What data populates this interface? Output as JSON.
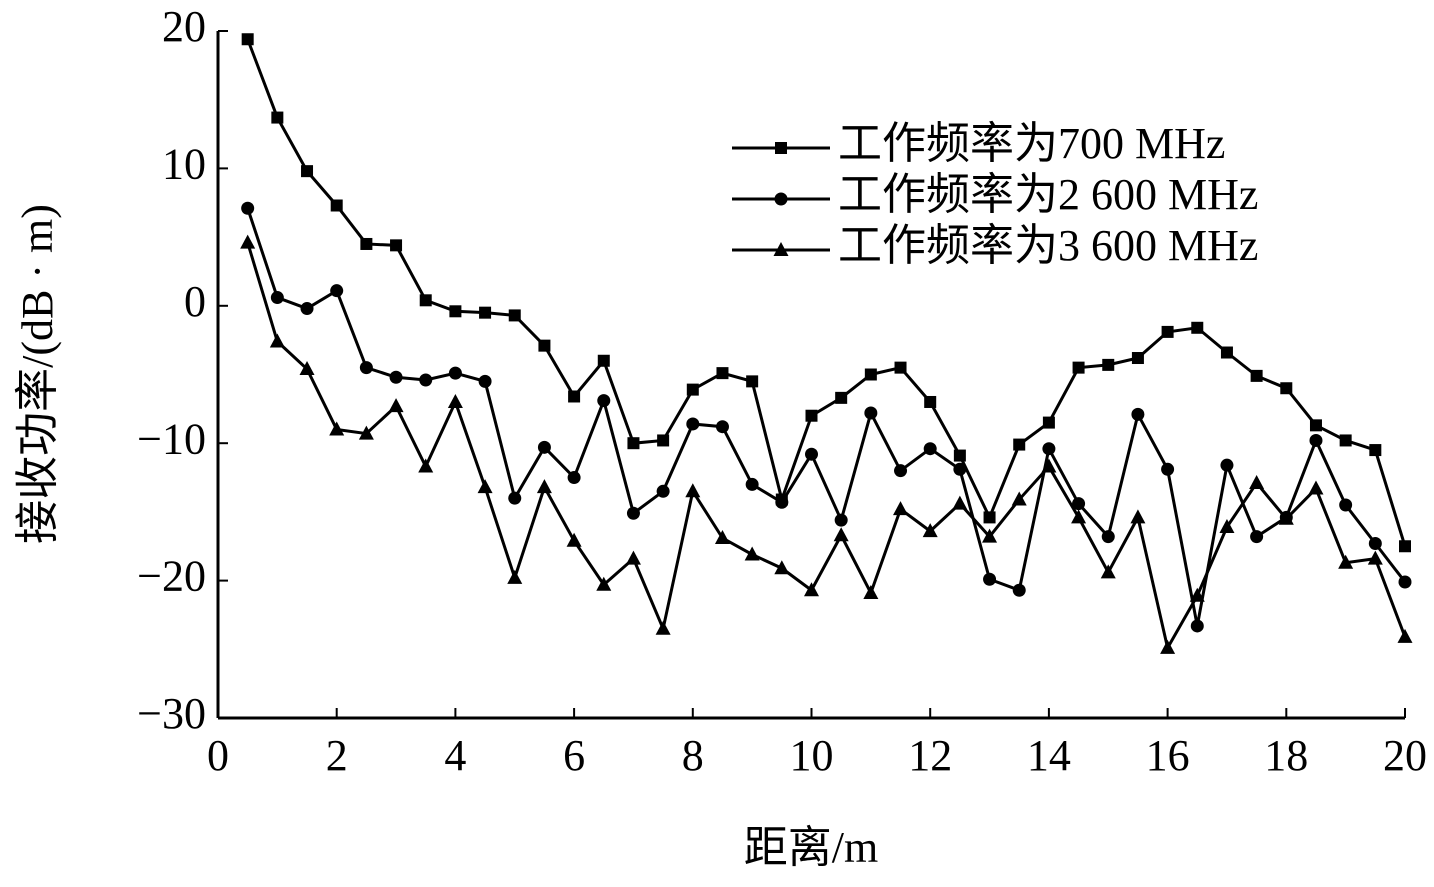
{
  "chart_data": {
    "type": "line",
    "xlabel": "距离/m",
    "ylabel": "接收功率/(dB · m)",
    "x": [
      0.5,
      1,
      1.5,
      2,
      2.5,
      3,
      3.5,
      4,
      4.5,
      5,
      5.5,
      6,
      6.5,
      7,
      7.5,
      8,
      8.5,
      9,
      9.5,
      10,
      10.5,
      11,
      11.5,
      12,
      12.5,
      13,
      13.5,
      14,
      14.5,
      15,
      15.5,
      16,
      16.5,
      17,
      17.5,
      18,
      18.5,
      19,
      19.5,
      20
    ],
    "series": [
      {
        "name": "工作频率为700 MHz",
        "color": "#000000",
        "marker": "square",
        "values": [
          19.4,
          13.7,
          9.8,
          7.3,
          4.5,
          4.4,
          0.4,
          -0.4,
          -0.5,
          -0.7,
          -2.9,
          -6.6,
          -4.0,
          -10.0,
          -9.8,
          -6.1,
          -4.9,
          -5.5,
          -14.1,
          -8.0,
          -6.7,
          -5.0,
          -4.5,
          -7.0,
          -10.9,
          -15.4,
          -10.1,
          -8.5,
          -4.5,
          -4.3,
          -3.8,
          -1.9,
          -1.6,
          -3.4,
          -5.1,
          -6.0,
          -8.7,
          -9.8,
          -10.5,
          -17.5
        ]
      },
      {
        "name": "工作频率为2 600 MHz",
        "color": "#000000",
        "marker": "circle",
        "values": [
          7.1,
          0.6,
          -0.2,
          1.1,
          -4.5,
          -5.2,
          -5.4,
          -4.9,
          -5.5,
          -14.0,
          -10.3,
          -12.5,
          -6.9,
          -15.1,
          -13.5,
          -8.6,
          -8.8,
          -13.0,
          -14.3,
          -10.8,
          -15.6,
          -7.8,
          -12.0,
          -10.4,
          -11.9,
          -19.9,
          -20.7,
          -10.4,
          -14.4,
          -16.8,
          -7.9,
          -11.9,
          -23.3,
          -11.6,
          -16.8,
          -15.4,
          -9.8,
          -14.5,
          -17.3,
          -20.1
        ]
      },
      {
        "name": "工作频率为3 600 MHz",
        "color": "#000000",
        "marker": "triangle",
        "values": [
          4.6,
          -2.6,
          -4.6,
          -9.0,
          -9.3,
          -7.3,
          -11.7,
          -7.0,
          -13.2,
          -19.8,
          -13.2,
          -17.1,
          -20.3,
          -18.4,
          -23.5,
          -13.5,
          -16.9,
          -18.1,
          -19.1,
          -20.7,
          -16.7,
          -20.9,
          -14.8,
          -16.4,
          -14.4,
          -16.8,
          -14.1,
          -11.7,
          -15.4,
          -19.4,
          -15.4,
          -24.9,
          -21.1,
          -16.1,
          -12.9,
          -15.5,
          -13.3,
          -18.7,
          -18.4,
          -24.1
        ]
      }
    ],
    "xlim": [
      0,
      20
    ],
    "xticks": [
      0,
      2,
      4,
      6,
      8,
      10,
      12,
      14,
      16,
      18,
      20
    ],
    "ylim": [
      -30,
      20
    ],
    "yticks": [
      {
        "value": -30,
        "label": "−30"
      },
      {
        "value": -20,
        "label": "−20"
      },
      {
        "value": -10,
        "label": "−10"
      },
      0,
      10,
      20
    ],
    "grid": false,
    "legend": "upper right"
  }
}
